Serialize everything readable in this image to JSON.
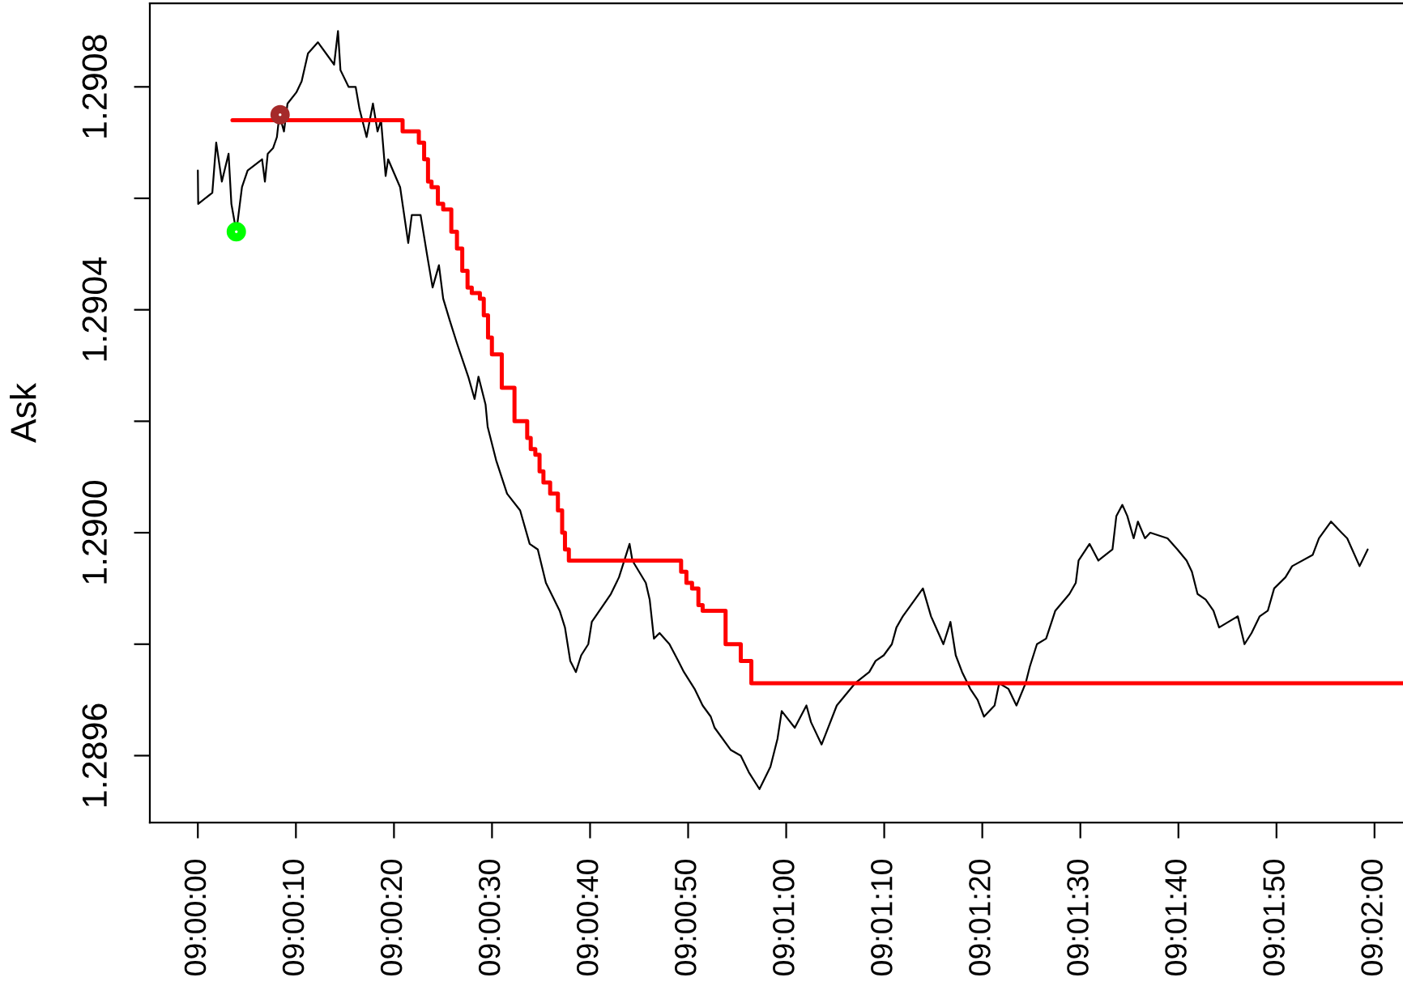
{
  "chart_data": {
    "type": "line",
    "ylabel": "Ask",
    "xlim": [
      8.99864,
      9.03414
    ],
    "ylim": [
      1.28948,
      1.29095
    ],
    "xticks": [
      {
        "value": 9,
        "label": "09:00:00"
      },
      {
        "value": 9.002778,
        "label": "09:00:10"
      },
      {
        "value": 9.005556,
        "label": "09:00:20"
      },
      {
        "value": 9.008333,
        "label": "09:00:30"
      },
      {
        "value": 9.011111,
        "label": "09:00:40"
      },
      {
        "value": 9.013889,
        "label": "09:00:50"
      },
      {
        "value": 9.016667,
        "label": "09:01:00"
      },
      {
        "value": 9.019444,
        "label": "09:01:10"
      },
      {
        "value": 9.022222,
        "label": "09:01:20"
      },
      {
        "value": 9.025,
        "label": "09:01:30"
      },
      {
        "value": 9.027778,
        "label": "09:01:40"
      },
      {
        "value": 9.030556,
        "label": "09:01:50"
      },
      {
        "value": 9.033333,
        "label": "09:02:00"
      }
    ],
    "yticks": [
      1.2896,
      {
        "value": 1.2898,
        "label": null
      },
      {
        "value": 1.29,
        "label": "1.2900"
      },
      {
        "value": 1.2902,
        "label": null
      },
      1.2904,
      {
        "value": 1.2906,
        "label": null
      },
      1.2908
    ],
    "series": [
      {
        "color": "#000000",
        "x": [
          9.0,
          9.00001,
          9.00041,
          9.00052,
          9.00068,
          9.00087,
          9.00095,
          9.00109,
          9.00125,
          9.00141,
          9.00182,
          9.0019,
          9.00198,
          9.00213,
          9.00224,
          9.00231,
          9.00244,
          9.00254,
          9.00279,
          9.00294,
          9.00312,
          9.0034,
          9.00386,
          9.00397,
          9.00404,
          9.00427,
          9.00447,
          9.00458,
          9.00478,
          9.00496,
          9.00509,
          9.00519,
          9.00532,
          9.00539,
          9.00573,
          9.00596,
          9.00606,
          9.00631,
          9.00649,
          9.00665,
          9.00683,
          9.00695,
          9.00714,
          9.00734,
          9.00766,
          9.00784,
          9.00795,
          9.00815,
          9.00821,
          9.00845,
          9.00876,
          9.00913,
          9.0094,
          9.00963,
          9.00986,
          9.01025,
          9.0104,
          9.01055,
          9.01071,
          9.01086,
          9.01106,
          9.01116,
          9.0117,
          9.01193,
          9.01223,
          9.01231,
          9.01269,
          9.0128,
          9.01292,
          9.01308,
          9.01336,
          9.01361,
          9.01377,
          9.01407,
          9.0143,
          9.01453,
          9.01464,
          9.0151,
          9.01538,
          9.01561,
          9.01591,
          9.01622,
          9.01642,
          9.01654,
          9.01691,
          9.01724,
          9.01737,
          9.01767,
          9.0181,
          9.01862,
          9.01902,
          9.0192,
          9.01943,
          9.01966,
          9.01979,
          9.01997,
          9.02054,
          9.02077,
          9.02112,
          9.02132,
          9.02147,
          9.02165,
          9.02188,
          9.02209,
          9.02227,
          9.02257,
          9.0227,
          9.02296,
          9.02319,
          9.02345,
          9.02357,
          9.02377,
          9.02403,
          9.02429,
          9.02469,
          9.02487,
          9.02495,
          9.02526,
          9.02551,
          9.02591,
          9.02602,
          9.02619,
          9.02633,
          9.02651,
          9.02663,
          9.02683,
          9.02698,
          9.02747,
          9.02775,
          9.02801,
          9.02816,
          9.02832,
          9.02855,
          9.02877,
          9.02893,
          9.02946,
          9.02965,
          9.02985,
          9.03008,
          9.03031,
          9.03049,
          9.03081,
          9.031,
          9.03158,
          9.03176,
          9.0321,
          9.0324,
          9.03256,
          9.03291,
          9.03314
        ],
        "values": [
          1.29065,
          1.29059,
          1.29061,
          1.2907,
          1.29063,
          1.29068,
          1.29059,
          1.29054,
          1.29062,
          1.29065,
          1.29067,
          1.29063,
          1.29068,
          1.29069,
          1.29071,
          1.29075,
          1.29072,
          1.29077,
          1.29079,
          1.29081,
          1.29086,
          1.29088,
          1.29084,
          1.2909,
          1.29083,
          1.2908,
          1.2908,
          1.29076,
          1.29071,
          1.29077,
          1.29072,
          1.29074,
          1.29064,
          1.29067,
          1.29062,
          1.29052,
          1.29057,
          1.29057,
          1.2905,
          1.29044,
          1.29048,
          1.29042,
          1.29038,
          1.29034,
          1.29028,
          1.29024,
          1.29028,
          1.29023,
          1.29019,
          1.29013,
          1.29007,
          1.29004,
          1.28998,
          1.28997,
          1.28991,
          1.28986,
          1.28983,
          1.28977,
          1.28975,
          1.28978,
          1.2898,
          1.28984,
          1.28989,
          1.28992,
          1.28998,
          1.28995,
          1.28991,
          1.28988,
          1.28981,
          1.28982,
          1.2898,
          1.28977,
          1.28975,
          1.28972,
          1.28969,
          1.28967,
          1.28965,
          1.28961,
          1.2896,
          1.28957,
          1.28954,
          1.28958,
          1.28963,
          1.28968,
          1.28965,
          1.28969,
          1.28966,
          1.28962,
          1.28969,
          1.28973,
          1.28975,
          1.28977,
          1.28978,
          1.2898,
          1.28983,
          1.28985,
          1.2899,
          1.28985,
          1.2898,
          1.28984,
          1.28978,
          1.28975,
          1.28972,
          1.2897,
          1.28967,
          1.28969,
          1.28973,
          1.28972,
          1.28969,
          1.28973,
          1.28976,
          1.2898,
          1.28981,
          1.28986,
          1.28989,
          1.28991,
          1.28995,
          1.28998,
          1.28995,
          1.28997,
          1.29003,
          1.29005,
          1.29003,
          1.28999,
          1.29002,
          1.28999,
          1.29,
          1.28999,
          1.28997,
          1.28995,
          1.28993,
          1.28989,
          1.28988,
          1.28986,
          1.28983,
          1.28985,
          1.2898,
          1.28982,
          1.28985,
          1.28986,
          1.2899,
          1.28992,
          1.28994,
          1.28996,
          1.28999,
          1.29002,
          1.29,
          1.28999,
          1.28994,
          1.28997
        ]
      },
      {
        "type": "step",
        "color": "#ff0000",
        "x": [
          9.00098,
          9.0058,
          9.00626,
          9.00641,
          9.00652,
          9.00662,
          9.0068,
          9.00695,
          9.00718,
          9.00734,
          9.00749,
          9.00764,
          9.00776,
          9.00799,
          9.0081,
          9.00822,
          9.00833,
          9.00861,
          9.00897,
          9.00933,
          9.00943,
          9.00956,
          9.00968,
          9.00979,
          9.00998,
          9.0102,
          9.01032,
          9.0104,
          9.01051,
          9.01369,
          9.01384,
          9.014,
          9.01418,
          9.0143,
          9.01495,
          9.01538,
          9.01568,
          9.03414
        ],
        "values": [
          1.29074,
          1.29072,
          1.2907,
          1.29067,
          1.29063,
          1.29062,
          1.29059,
          1.29058,
          1.29054,
          1.29051,
          1.29047,
          1.29044,
          1.29043,
          1.29042,
          1.29039,
          1.29035,
          1.29032,
          1.29026,
          1.2902,
          1.29017,
          1.29015,
          1.29014,
          1.29011,
          1.29009,
          1.29007,
          1.29004,
          1.29,
          1.28997,
          1.28995,
          1.28993,
          1.28991,
          1.2899,
          1.28987,
          1.28986,
          1.2898,
          1.28977,
          1.28973,
          1.28973
        ]
      },
      {
        "type": "scatter",
        "color": "#00ff00",
        "marker": "circle",
        "x": [
          9.00109
        ],
        "values": [
          1.29054
        ]
      },
      {
        "type": "scatter",
        "color": "#a52a2a",
        "marker": "circle",
        "x": [
          9.00233
        ],
        "values": [
          1.29075
        ]
      }
    ]
  }
}
